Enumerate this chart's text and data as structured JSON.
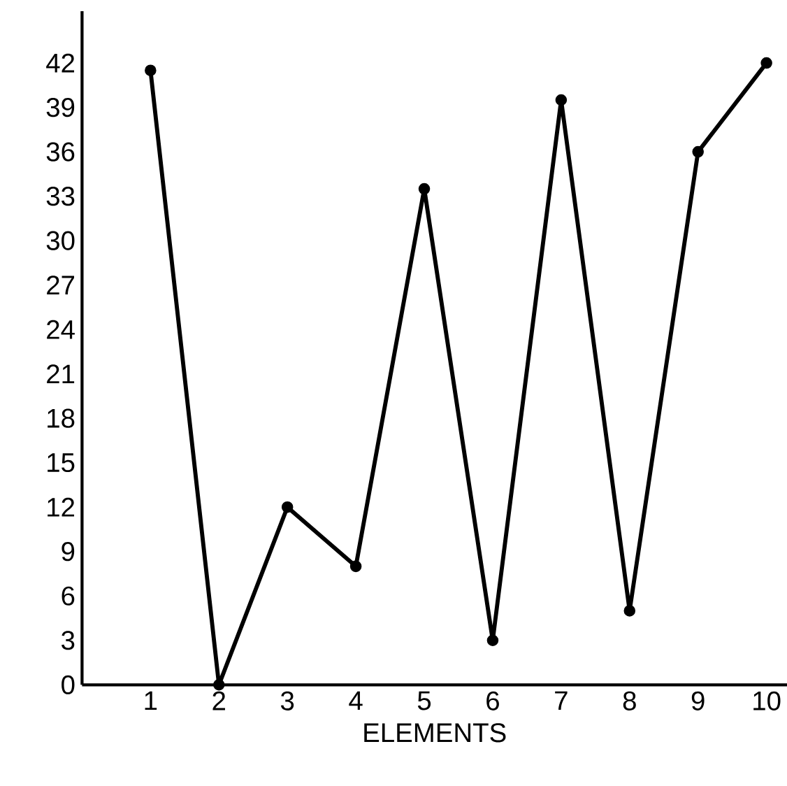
{
  "chart_data": {
    "type": "line",
    "xlabel": "ELEMENTS",
    "x": [
      1,
      2,
      3,
      4,
      5,
      6,
      7,
      8,
      9,
      10
    ],
    "values": [
      41.5,
      0,
      12,
      8,
      33.5,
      3,
      39.5,
      5,
      36,
      42
    ],
    "color": "#000000",
    "marker": "circle",
    "line_style": "solid",
    "xlim": [
      0,
      10.3
    ],
    "xticks": [
      1,
      2,
      3,
      4,
      5,
      6,
      7,
      8,
      9,
      10
    ],
    "ylim": [
      0,
      45.5
    ],
    "yticks": [
      0,
      3,
      6,
      9,
      12,
      15,
      18,
      21,
      24,
      27,
      30,
      33,
      36,
      39,
      42
    ],
    "grid": false
  }
}
